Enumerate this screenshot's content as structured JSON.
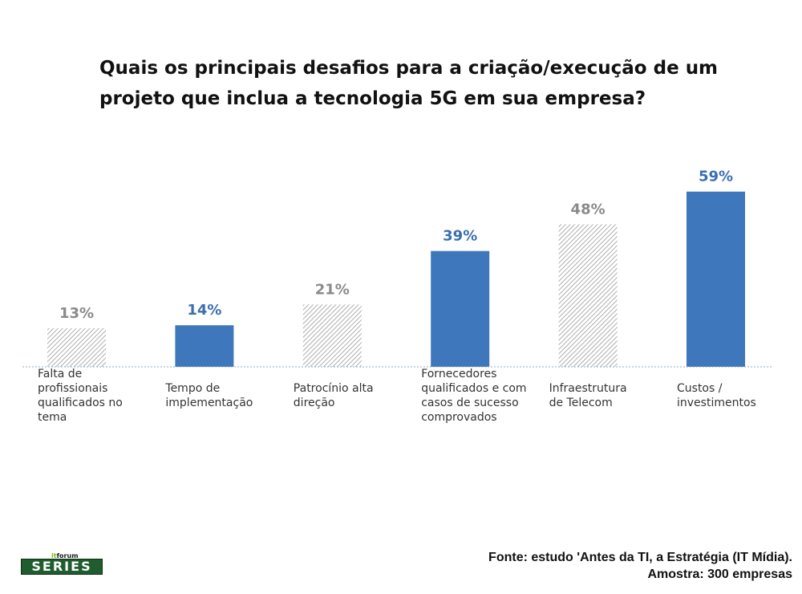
{
  "chart_data": {
    "type": "bar",
    "title": "Quais os principais desafios para a criação/execução de um projeto que inclua a tecnologia 5G em sua empresa?",
    "categories": [
      "Falta de profissionais qualificados no tema",
      "Tempo de implementação",
      "Patrocínio alta direção",
      "Fornecedores qualificados e com casos de sucesso comprovados",
      "Infraestrutura de Telecom",
      "Custos / investimentos"
    ],
    "category_lines": [
      [
        "Falta de",
        "profissionais",
        "qualificados no",
        "tema"
      ],
      [
        "Tempo de",
        "implementação"
      ],
      [
        "Patrocínio alta",
        "direção"
      ],
      [
        "Fornecedores",
        "qualificados e com",
        "casos de sucesso",
        "comprovados"
      ],
      [
        "Infraestrutura",
        "de Telecom"
      ],
      [
        "Custos /",
        "investimentos"
      ]
    ],
    "values": [
      13,
      14,
      21,
      39,
      48,
      59
    ],
    "data_labels": [
      "13%",
      "14%",
      "21%",
      "39%",
      "48%",
      "59%"
    ],
    "highlighted": [
      false,
      true,
      false,
      true,
      false,
      true
    ],
    "ylim": [
      0,
      60
    ],
    "grid": false,
    "legend": "none",
    "colors": {
      "highlight": "#3f77bc",
      "highlight_label": "#3a6fb0",
      "muted_label": "#8a8a8a",
      "hatch": "#9a9a9a",
      "baseline": "#8aa8c8"
    }
  },
  "source": {
    "line1": "Fonte: estudo 'Antes da TI, a Estratégia (IT Mídia).",
    "line2": "Amostra: 300 empresas"
  },
  "logo": {
    "small_it": "it",
    "small_text": "forum",
    "big_text": "SERIES"
  }
}
